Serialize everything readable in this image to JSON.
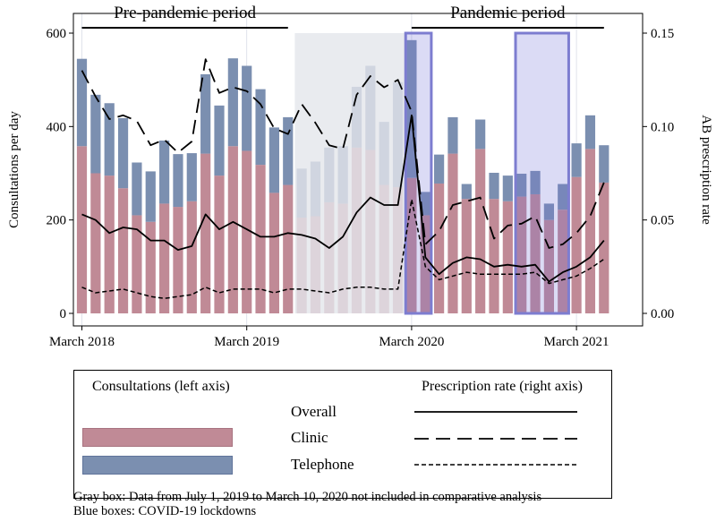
{
  "chart_data": {
    "type": "bar",
    "subtype": "stacked bar with overlaid lines, dual y-axis",
    "x": [
      "2018-03",
      "2018-04",
      "2018-05",
      "2018-06",
      "2018-07",
      "2018-08",
      "2018-09",
      "2018-10",
      "2018-11",
      "2018-12",
      "2019-01",
      "2019-02",
      "2019-03",
      "2019-04",
      "2019-05",
      "2019-06",
      "2019-07",
      "2019-08",
      "2019-09",
      "2019-10",
      "2019-11",
      "2019-12",
      "2020-01",
      "2020-02",
      "2020-03",
      "2020-04",
      "2020-05",
      "2020-06",
      "2020-07",
      "2020-08",
      "2020-09",
      "2020-10",
      "2020-11",
      "2020-12",
      "2021-01",
      "2021-02",
      "2021-03",
      "2021-04",
      "2021-05"
    ],
    "x_tick_labels": [
      "March 2018",
      "March 2019",
      "March 2020",
      "March 2021"
    ],
    "ylabel": "Consultations per day",
    "ylabel_right": "AB prescription rate",
    "ylim": [
      0,
      620
    ],
    "yticks": [
      0,
      200,
      400,
      600
    ],
    "ylim_right": [
      0,
      0.155
    ],
    "yticks_right": [
      "0.00",
      "0.05",
      "0.10",
      "0.15"
    ],
    "series": [
      {
        "name": "Clinic",
        "axis": "left",
        "kind": "bar",
        "color": "#c08a96",
        "values": [
          358,
          300,
          295,
          268,
          210,
          196,
          235,
          228,
          240,
          342,
          295,
          358,
          348,
          318,
          258,
          275,
          205,
          208,
          238,
          235,
          355,
          350,
          275,
          270,
          290,
          210,
          278,
          342,
          245,
          352,
          245,
          240,
          250,
          255,
          200,
          222,
          292,
          352,
          280
        ]
      },
      {
        "name": "Telephone",
        "axis": "left",
        "kind": "bar",
        "color": "#7b8fb0",
        "values": [
          187,
          168,
          155,
          150,
          113,
          108,
          135,
          113,
          103,
          170,
          150,
          188,
          182,
          162,
          140,
          145,
          105,
          117,
          117,
          123,
          130,
          180,
          135,
          225,
          295,
          50,
          62,
          78,
          32,
          63,
          56,
          55,
          49,
          50,
          35,
          55,
          72,
          72,
          80
        ]
      },
      {
        "name": "Overall",
        "axis": "right",
        "kind": "line",
        "style": "solid",
        "values": [
          0.053,
          0.05,
          0.043,
          0.046,
          0.045,
          0.039,
          0.039,
          0.034,
          0.036,
          0.053,
          0.045,
          0.049,
          0.045,
          0.041,
          0.041,
          0.043,
          0.042,
          0.04,
          0.035,
          0.041,
          0.054,
          0.062,
          0.058,
          0.058,
          0.106,
          0.03,
          0.021,
          0.027,
          0.03,
          0.029,
          0.025,
          0.026,
          0.025,
          0.026,
          0.017,
          0.022,
          0.025,
          0.03,
          0.039
        ]
      },
      {
        "name": "Clinic",
        "axis": "right",
        "kind": "line",
        "style": "dashed",
        "values": [
          0.13,
          0.116,
          0.104,
          0.106,
          0.103,
          0.09,
          0.093,
          0.086,
          0.092,
          0.136,
          0.118,
          0.121,
          0.119,
          0.112,
          0.099,
          0.096,
          0.112,
          0.102,
          0.09,
          0.088,
          0.117,
          0.127,
          0.121,
          0.125,
          0.108,
          0.037,
          0.044,
          0.058,
          0.06,
          0.062,
          0.04,
          0.047,
          0.048,
          0.052,
          0.035,
          0.037,
          0.043,
          0.052,
          0.07
        ]
      },
      {
        "name": "Telephone",
        "axis": "right",
        "kind": "line",
        "style": "dotted",
        "values": [
          0.014,
          0.011,
          0.012,
          0.013,
          0.011,
          0.009,
          0.008,
          0.009,
          0.01,
          0.014,
          0.011,
          0.013,
          0.013,
          0.013,
          0.011,
          0.013,
          0.013,
          0.012,
          0.011,
          0.013,
          0.014,
          0.014,
          0.013,
          0.013,
          0.061,
          0.025,
          0.018,
          0.02,
          0.022,
          0.021,
          0.021,
          0.021,
          0.021,
          0.022,
          0.016,
          0.018,
          0.02,
          0.024,
          0.029
        ]
      }
    ],
    "shaded_regions": [
      {
        "type": "gray",
        "from": "2019-07",
        "to": "2020-02"
      },
      {
        "type": "lockdown",
        "from": "2020-03",
        "to": "2020-04"
      },
      {
        "type": "lockdown",
        "from": "2020-11",
        "to": "2021-02"
      }
    ],
    "period_labels": [
      {
        "text": "Pre-pandemic period",
        "from": "2018-03",
        "to": "2019-06"
      },
      {
        "text": "Pandemic period",
        "from": "2020-03",
        "to": "2021-05"
      }
    ]
  },
  "legend": {
    "consultations_header": "Consultations (left axis)",
    "prescription_header": "Prescription rate (right axis)",
    "overall_label": "Overall",
    "clinic_label": "Clinic",
    "telephone_label": "Telephone",
    "clinic_color": "#c08a96",
    "telephone_color": "#7b8fb0"
  },
  "notes": {
    "gray_box": "Gray box: Data from July 1, 2019 to March 10, 2020 not included in comparative analysis",
    "blue_boxes": "Blue boxes: COVID-19 lockdowns"
  }
}
